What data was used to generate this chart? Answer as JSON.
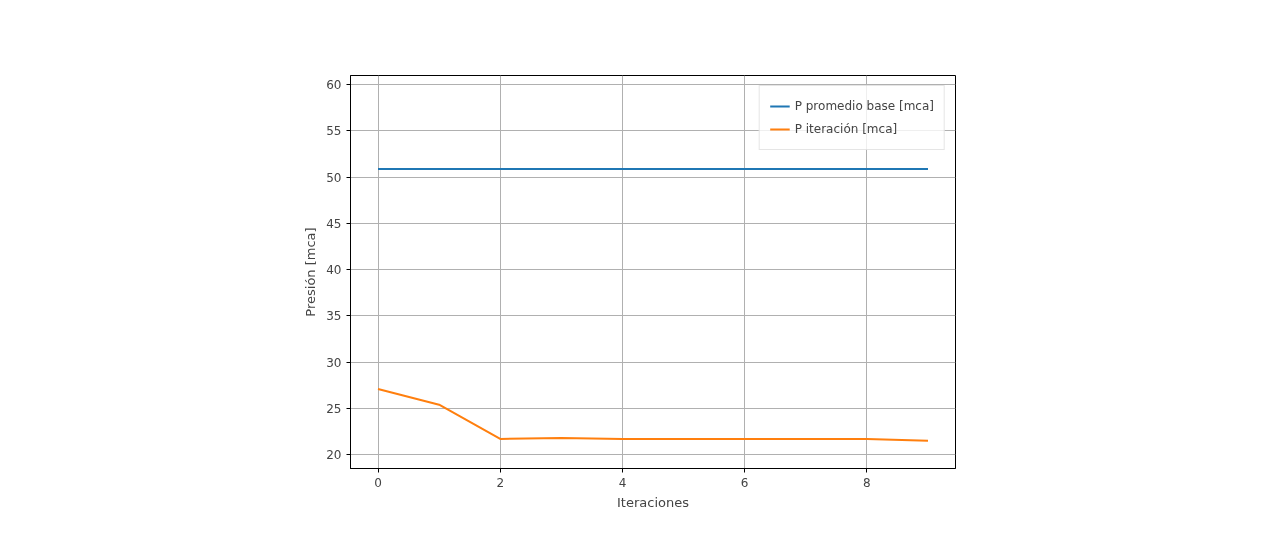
{
  "chart_data": {
    "type": "line",
    "xlabel": "Iteraciones",
    "ylabel": "Presión [mca]",
    "x": [
      0,
      1,
      2,
      3,
      4,
      5,
      6,
      7,
      8,
      9
    ],
    "series": [
      {
        "name": "P promedio base [mca]",
        "color": "#1f77b4",
        "values": [
          50.9,
          50.9,
          50.9,
          50.9,
          50.9,
          50.9,
          50.9,
          50.9,
          50.9,
          50.9
        ]
      },
      {
        "name": "P iteración [mca]",
        "color": "#ff7f0e",
        "values": [
          27.1,
          25.4,
          21.7,
          21.8,
          21.7,
          21.7,
          21.7,
          21.7,
          21.7,
          21.5
        ]
      }
    ],
    "xlim": [
      -0.45,
      9.45
    ],
    "ylim": [
      18.5,
      61
    ],
    "xticks": [
      0,
      2,
      4,
      6,
      8
    ],
    "yticks": [
      20,
      25,
      30,
      35,
      40,
      45,
      50,
      55,
      60
    ],
    "grid": true,
    "legend": "top right",
    "line_style": "solid"
  }
}
